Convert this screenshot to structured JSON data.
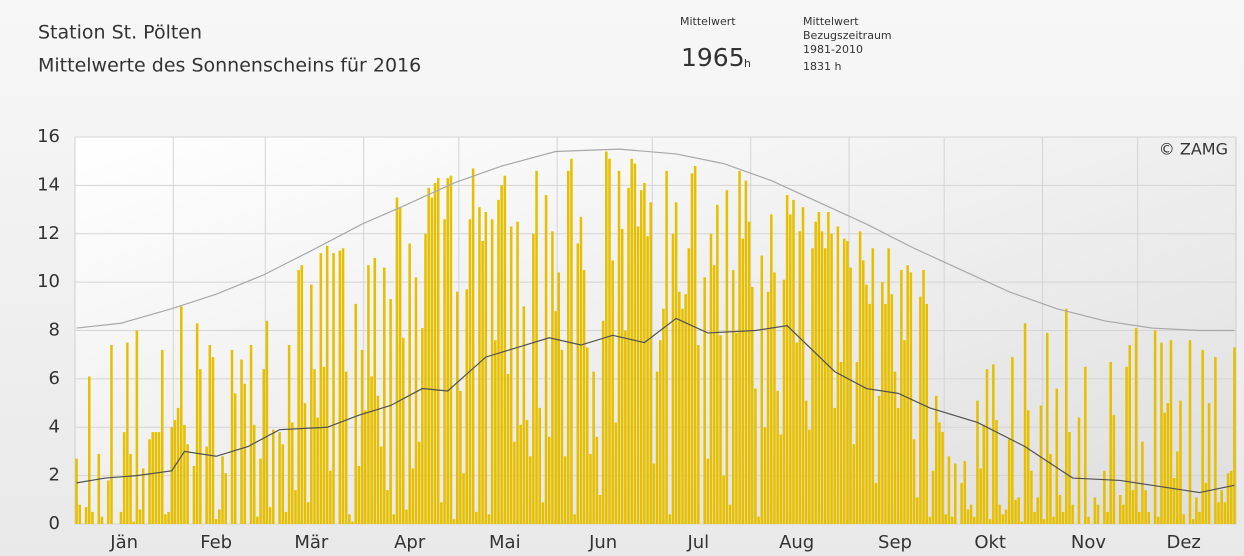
{
  "chart_data": {
    "type": "bar",
    "title": "Station St. Pölten",
    "subtitle": "Mittelwerte des Sonnenscheins für 2016",
    "annotations": [
      "Mittelwert",
      "1965",
      "h",
      "Mittelwert",
      "Bezugszeitraum",
      "1981-2010",
      "1831 h",
      "© ZAMG"
    ],
    "xlim": [
      0.5,
      366.5
    ],
    "xticks": [
      {
        "value": 16,
        "label": "Jän"
      },
      {
        "value": 45,
        "label": "Feb"
      },
      {
        "value": 75,
        "label": "Mär"
      },
      {
        "value": 106,
        "label": "Apr"
      },
      {
        "value": 136,
        "label": "Mai"
      },
      {
        "value": 167,
        "label": "Jun"
      },
      {
        "value": 197,
        "label": "Jul"
      },
      {
        "value": 228,
        "label": "Aug"
      },
      {
        "value": 259,
        "label": "Sep"
      },
      {
        "value": 289,
        "label": "Okt"
      },
      {
        "value": 320,
        "label": "Nov"
      },
      {
        "value": 350,
        "label": "Dez"
      }
    ],
    "xgrid": [
      31.5,
      60.5,
      91.5,
      121.5,
      152.5,
      182.5,
      213.5,
      244.5,
      274.5,
      305.5,
      335.5
    ],
    "ylim": [
      0,
      16
    ],
    "yticks": [
      0,
      2,
      4,
      6,
      8,
      10,
      12,
      14,
      16
    ],
    "grid": true,
    "series": [
      {
        "type": "bar",
        "color": "#e6c000",
        "x": [
          1,
          2,
          3,
          4,
          5,
          6,
          7,
          8,
          9,
          10,
          11,
          12,
          13,
          14,
          15,
          16,
          17,
          18,
          19,
          20,
          21,
          22,
          23,
          24,
          25,
          26,
          27,
          28,
          29,
          30,
          31,
          32,
          33,
          34,
          35,
          36,
          37,
          38,
          39,
          40,
          41,
          42,
          43,
          44,
          45,
          46,
          47,
          48,
          49,
          50,
          51,
          52,
          53,
          54,
          55,
          56,
          57,
          58,
          59,
          60,
          61,
          62,
          63,
          64,
          65,
          66,
          67,
          68,
          69,
          70,
          71,
          72,
          73,
          74,
          75,
          76,
          77,
          78,
          79,
          80,
          81,
          82,
          83,
          84,
          85,
          86,
          87,
          88,
          89,
          90,
          91,
          92,
          93,
          94,
          95,
          96,
          97,
          98,
          99,
          100,
          101,
          102,
          103,
          104,
          105,
          106,
          107,
          108,
          109,
          110,
          111,
          112,
          113,
          114,
          115,
          116,
          117,
          118,
          119,
          120,
          121,
          122,
          123,
          124,
          125,
          126,
          127,
          128,
          129,
          130,
          131,
          132,
          133,
          134,
          135,
          136,
          137,
          138,
          139,
          140,
          141,
          142,
          143,
          144,
          145,
          146,
          147,
          148,
          149,
          150,
          151,
          152,
          153,
          154,
          155,
          156,
          157,
          158,
          159,
          160,
          161,
          162,
          163,
          164,
          165,
          166,
          167,
          168,
          169,
          170,
          171,
          172,
          173,
          174,
          175,
          176,
          177,
          178,
          179,
          180,
          181,
          182,
          183,
          184,
          185,
          186,
          187,
          188,
          189,
          190,
          191,
          192,
          193,
          194,
          195,
          196,
          197,
          198,
          199,
          200,
          201,
          202,
          203,
          204,
          205,
          206,
          207,
          208,
          209,
          210,
          211,
          212,
          213,
          214,
          215,
          216,
          217,
          218,
          219,
          220,
          221,
          222,
          223,
          224,
          225,
          226,
          227,
          228,
          229,
          230,
          231,
          232,
          233,
          234,
          235,
          236,
          237,
          238,
          239,
          240,
          241,
          242,
          243,
          244,
          245,
          246,
          247,
          248,
          249,
          250,
          251,
          252,
          253,
          254,
          255,
          256,
          257,
          258,
          259,
          260,
          261,
          262,
          263,
          264,
          265,
          266,
          267,
          268,
          269,
          270,
          271,
          272,
          273,
          274,
          275,
          276,
          277,
          278,
          279,
          280,
          281,
          282,
          283,
          284,
          285,
          286,
          287,
          288,
          289,
          290,
          291,
          292,
          293,
          294,
          295,
          296,
          297,
          298,
          299,
          300,
          301,
          302,
          303,
          304,
          305,
          306,
          307,
          308,
          309,
          310,
          311,
          312,
          313,
          314,
          315,
          316,
          317,
          318,
          319,
          320,
          321,
          322,
          323,
          324,
          325,
          326,
          327,
          328,
          329,
          330,
          331,
          332,
          333,
          334,
          335,
          336,
          337,
          338,
          339,
          340,
          341,
          342,
          343,
          344,
          345,
          346,
          347,
          348,
          349,
          350,
          351,
          352,
          353,
          354,
          355,
          356,
          357,
          358,
          359,
          360,
          361,
          362,
          363,
          364,
          365,
          366
        ],
        "values": [
          2.7,
          0.8,
          0,
          0.7,
          6.1,
          0.5,
          0,
          2.9,
          0.3,
          0,
          1.8,
          7.4,
          0,
          0,
          0.5,
          3.8,
          7.5,
          2.9,
          0.1,
          8.0,
          0.6,
          2.3,
          0,
          3.5,
          3.8,
          3.8,
          3.8,
          7.2,
          0.4,
          0.5,
          4.0,
          4.3,
          4.8,
          9.0,
          4.1,
          3.3,
          0,
          2.4,
          8.3,
          6.4,
          0,
          3.2,
          7.4,
          6.9,
          0.2,
          0.6,
          2.8,
          2.1,
          0,
          7.2,
          5.4,
          0,
          6.8,
          5.8,
          0,
          7.4,
          4.1,
          0.3,
          2.7,
          6.4,
          8.4,
          0.7,
          3.9,
          0,
          3.8,
          3.3,
          0.5,
          7.4,
          4.2,
          1.4,
          10.5,
          10.7,
          5.0,
          0.9,
          9.9,
          6.4,
          4.4,
          11.2,
          6.5,
          11.5,
          2.2,
          11.2,
          0,
          11.3,
          11.4,
          6.3,
          0.4,
          0.1,
          9.1,
          2.4,
          7.2,
          4.7,
          10.7,
          6.1,
          11.0,
          5.3,
          3.2,
          10.6,
          1.4,
          9.3,
          0.4,
          13.5,
          13.1,
          7.7,
          0.6,
          11.6,
          2.3,
          10.2,
          3.4,
          8.1,
          12.0,
          13.9,
          13.5,
          14.1,
          14.3,
          0.9,
          12.6,
          14.3,
          14.4,
          0.2,
          9.6,
          5.5,
          2.1,
          9.7,
          12.6,
          14.7,
          0.5,
          13.1,
          11.7,
          12.9,
          0.4,
          12.6,
          7.6,
          13.4,
          14.0,
          14.4,
          6.2,
          12.3,
          3.4,
          12.5,
          4.1,
          9.0,
          4.3,
          2.8,
          12.0,
          14.6,
          4.8,
          0.9,
          13.6,
          3.6,
          12.1,
          8.8,
          10.4,
          7.2,
          2.8,
          14.6,
          15.1,
          0.4,
          11.6,
          12.7,
          10.5,
          7.3,
          2.9,
          6.3,
          3.6,
          1.2,
          8.4,
          15.4,
          15.1,
          10.9,
          4.2,
          14.6,
          12.2,
          8.0,
          13.9,
          15.1,
          14.9,
          12.3,
          13.8,
          14.1,
          11.9,
          13.3,
          2.5,
          6.3,
          7.6,
          8.9,
          14.6,
          0.4,
          12.0,
          13.3,
          9.6,
          8.9,
          9.5,
          11.4,
          14.5,
          14.8,
          7.4,
          0,
          10.2,
          2.7,
          12.0,
          10.7,
          13.2,
          7.8,
          2.0,
          13.8,
          0.8,
          10.5,
          7.9,
          14.6,
          11.8,
          14.2,
          12.5,
          9.8,
          5.6,
          0.3,
          11.1,
          4.0,
          9.6,
          12.8,
          10.4,
          5.5,
          3.7,
          10.1,
          13.6,
          12.8,
          13.4,
          7.5,
          12.1,
          13.1,
          5.1,
          3.9,
          11.4,
          12.5,
          12.9,
          12.1,
          11.4,
          12.9,
          12.0,
          4.8,
          12.3,
          6.7,
          11.8,
          11.7,
          10.6,
          3.3,
          6.7,
          12.1,
          10.9,
          9.9,
          9.1,
          11.4,
          1.7,
          5.3,
          10.0,
          9.1,
          11.4,
          9.5,
          6.3,
          4.8,
          10.5,
          7.6,
          10.7,
          10.4,
          3.5,
          1.1,
          9.4,
          10.5,
          9.1,
          0.3,
          2.2,
          5.3,
          4.2,
          3.8,
          0.4,
          2.8,
          0.3,
          2.5,
          0,
          1.7,
          2.6,
          0.6,
          0.8,
          0.3,
          5.1,
          2.3,
          4.1,
          6.4,
          0.2,
          6.6,
          4.3,
          0.8,
          0.4,
          0.6,
          3.5,
          6.9,
          1.0,
          1.1,
          0.1,
          8.3,
          4.7,
          2.2,
          0.5,
          1.1,
          4.9,
          0.2,
          7.9,
          2.9,
          0.3,
          5.6,
          1.2,
          0.5,
          8.9,
          3.8,
          0.8,
          0,
          4.4,
          0,
          6.5,
          0.3,
          0,
          1.1,
          0.8,
          0,
          2.2,
          0.5,
          6.7,
          4.5,
          0,
          1.2,
          0.8,
          6.5,
          7.4,
          1.4,
          8.1,
          0.5,
          3.4,
          1.4,
          0.5,
          0,
          8.0,
          0.3,
          7.5,
          4.6,
          5.0,
          7.6,
          1.9,
          3.0,
          5.1,
          0.4,
          0,
          7.6,
          0.2,
          1.1,
          0.5,
          7.2,
          1.7,
          5.0,
          0,
          6.9,
          0.9,
          1.4,
          0.9,
          2.1,
          2.2,
          7.3
        ]
      },
      {
        "type": "line",
        "color": "#a8a8a8",
        "x": [
          1,
          15,
          31,
          45,
          60,
          75,
          91,
          105,
          120,
          135,
          152,
          172,
          190,
          205,
          220,
          235,
          250,
          265,
          280,
          295,
          310,
          325,
          340,
          355,
          366
        ],
        "values": [
          8.1,
          8.3,
          8.9,
          9.5,
          10.3,
          11.3,
          12.4,
          13.2,
          14.1,
          14.8,
          15.4,
          15.5,
          15.3,
          14.9,
          14.2,
          13.3,
          12.4,
          11.4,
          10.5,
          9.6,
          8.9,
          8.4,
          8.1,
          8.0,
          8.0
        ]
      },
      {
        "type": "line",
        "color": "#505050",
        "x": [
          1,
          10,
          20,
          31,
          35,
          45,
          55,
          65,
          80,
          90,
          100,
          110,
          118,
          130,
          140,
          150,
          160,
          170,
          180,
          190,
          200,
          215,
          225,
          240,
          250,
          260,
          270,
          285,
          300,
          315,
          330,
          345,
          355,
          366
        ],
        "values": [
          1.7,
          1.9,
          2.0,
          2.2,
          3.0,
          2.8,
          3.2,
          3.9,
          4.0,
          4.5,
          4.9,
          5.6,
          5.5,
          6.9,
          7.3,
          7.7,
          7.4,
          7.8,
          7.5,
          8.5,
          7.9,
          8.0,
          8.2,
          6.3,
          5.6,
          5.4,
          4.8,
          4.2,
          3.2,
          1.9,
          1.8,
          1.5,
          1.3,
          1.6
        ]
      }
    ]
  }
}
